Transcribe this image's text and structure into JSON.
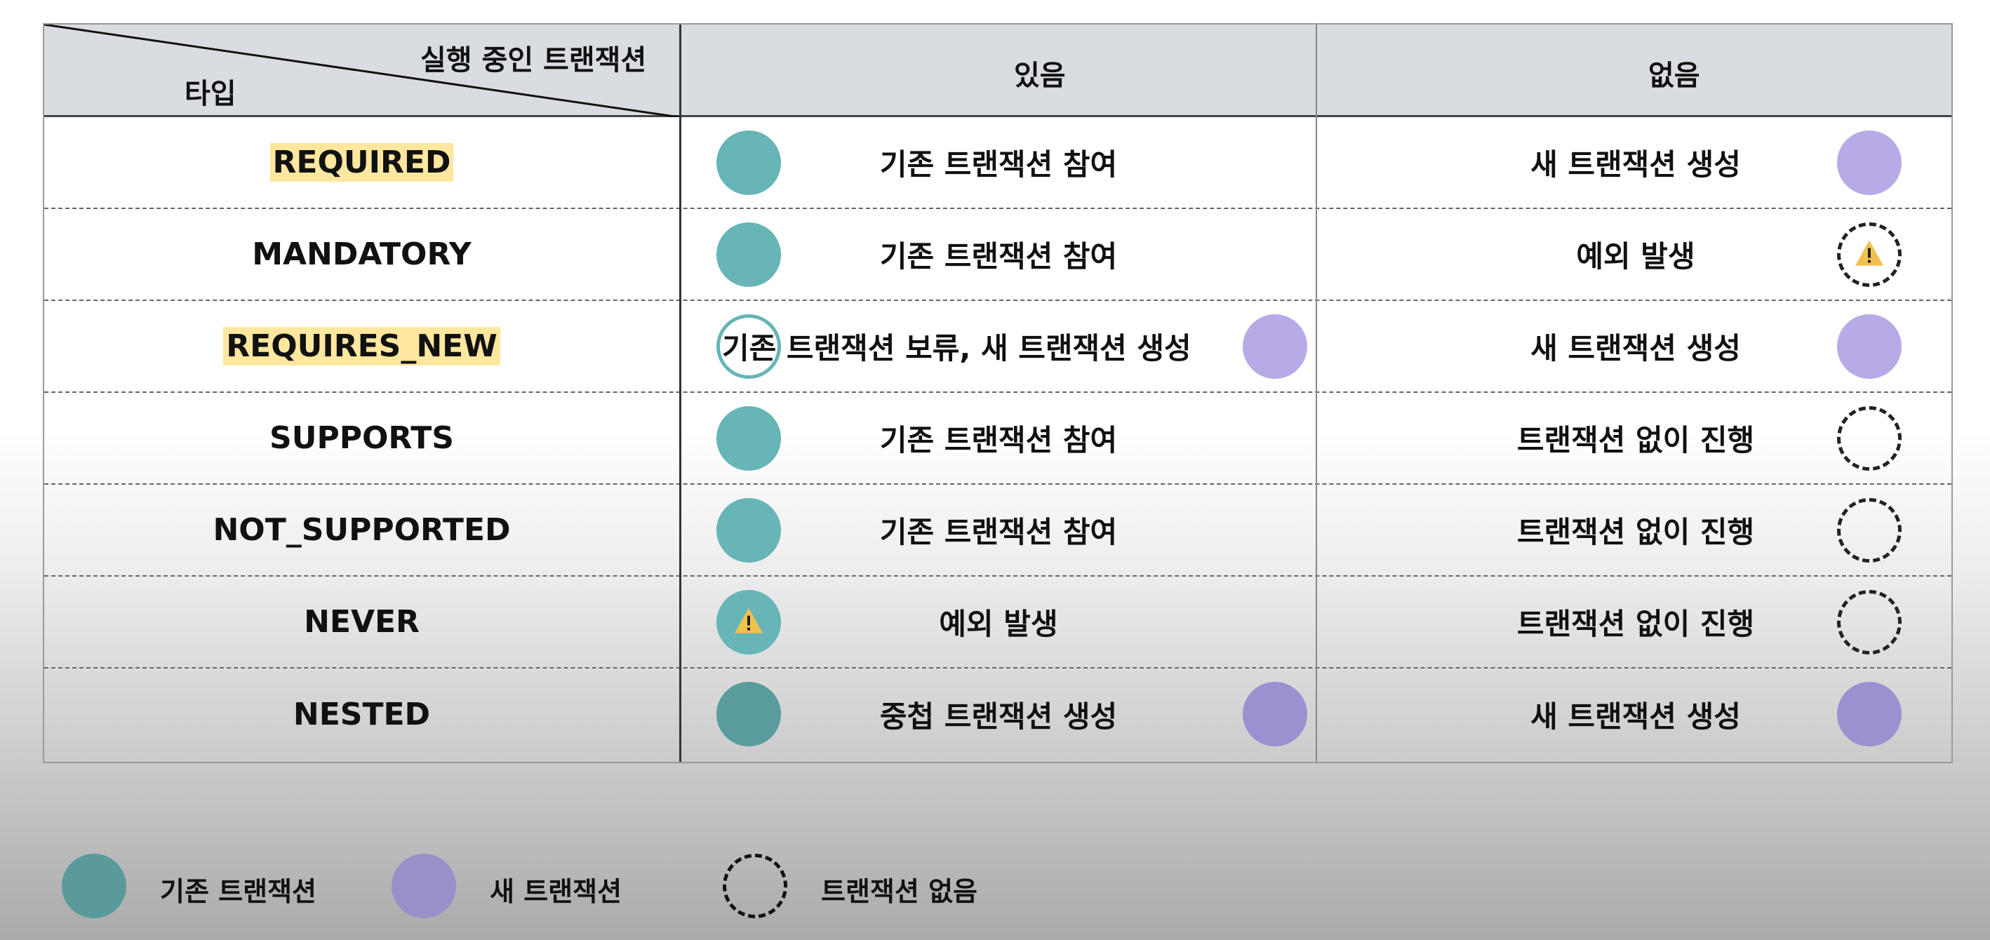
{
  "header": {
    "corner_top": "실행 중인 트랜잭션",
    "corner_bottom": "타입",
    "col_exists": "있음",
    "col_none": "없음"
  },
  "rows": [
    {
      "type": "REQUIRED",
      "exists": "기존 트랜잭션 참여",
      "none": "새 트랜잭션 생성"
    },
    {
      "type": "MANDATORY",
      "exists": "기존 트랜잭션 참여",
      "none": "예외 발생"
    },
    {
      "type": "REQUIRES_NEW",
      "exists": "기존 트랜잭션 보류, 새 트랜잭션 생성",
      "none": "새 트랜잭션 생성"
    },
    {
      "type": "SUPPORTS",
      "exists": "기존 트랜잭션 참여",
      "none": "트랜잭션 없이 진행"
    },
    {
      "type": "NOT_SUPPORTED",
      "exists": "기존 트랜잭션 참여",
      "none": "트랜잭션 없이 진행"
    },
    {
      "type": "NEVER",
      "exists": "예외 발생",
      "none": "트랜잭션 없이 진행"
    },
    {
      "type": "NESTED",
      "exists": "중첩 트랜잭션 생성",
      "none": "새 트랜잭션 생성"
    }
  ],
  "legend": {
    "existing": "기존 트랜잭션",
    "new": "새 트랜잭션",
    "none": "트랜잭션 없음"
  },
  "colors": {
    "existing": "#67b5b6",
    "new": "#b8aae6",
    "warning": "#f1c24b",
    "highlight": "#ffe7a0"
  },
  "icons": [
    "existing-transaction-circle",
    "new-transaction-circle",
    "no-transaction-dashed-circle",
    "warning-icon"
  ]
}
